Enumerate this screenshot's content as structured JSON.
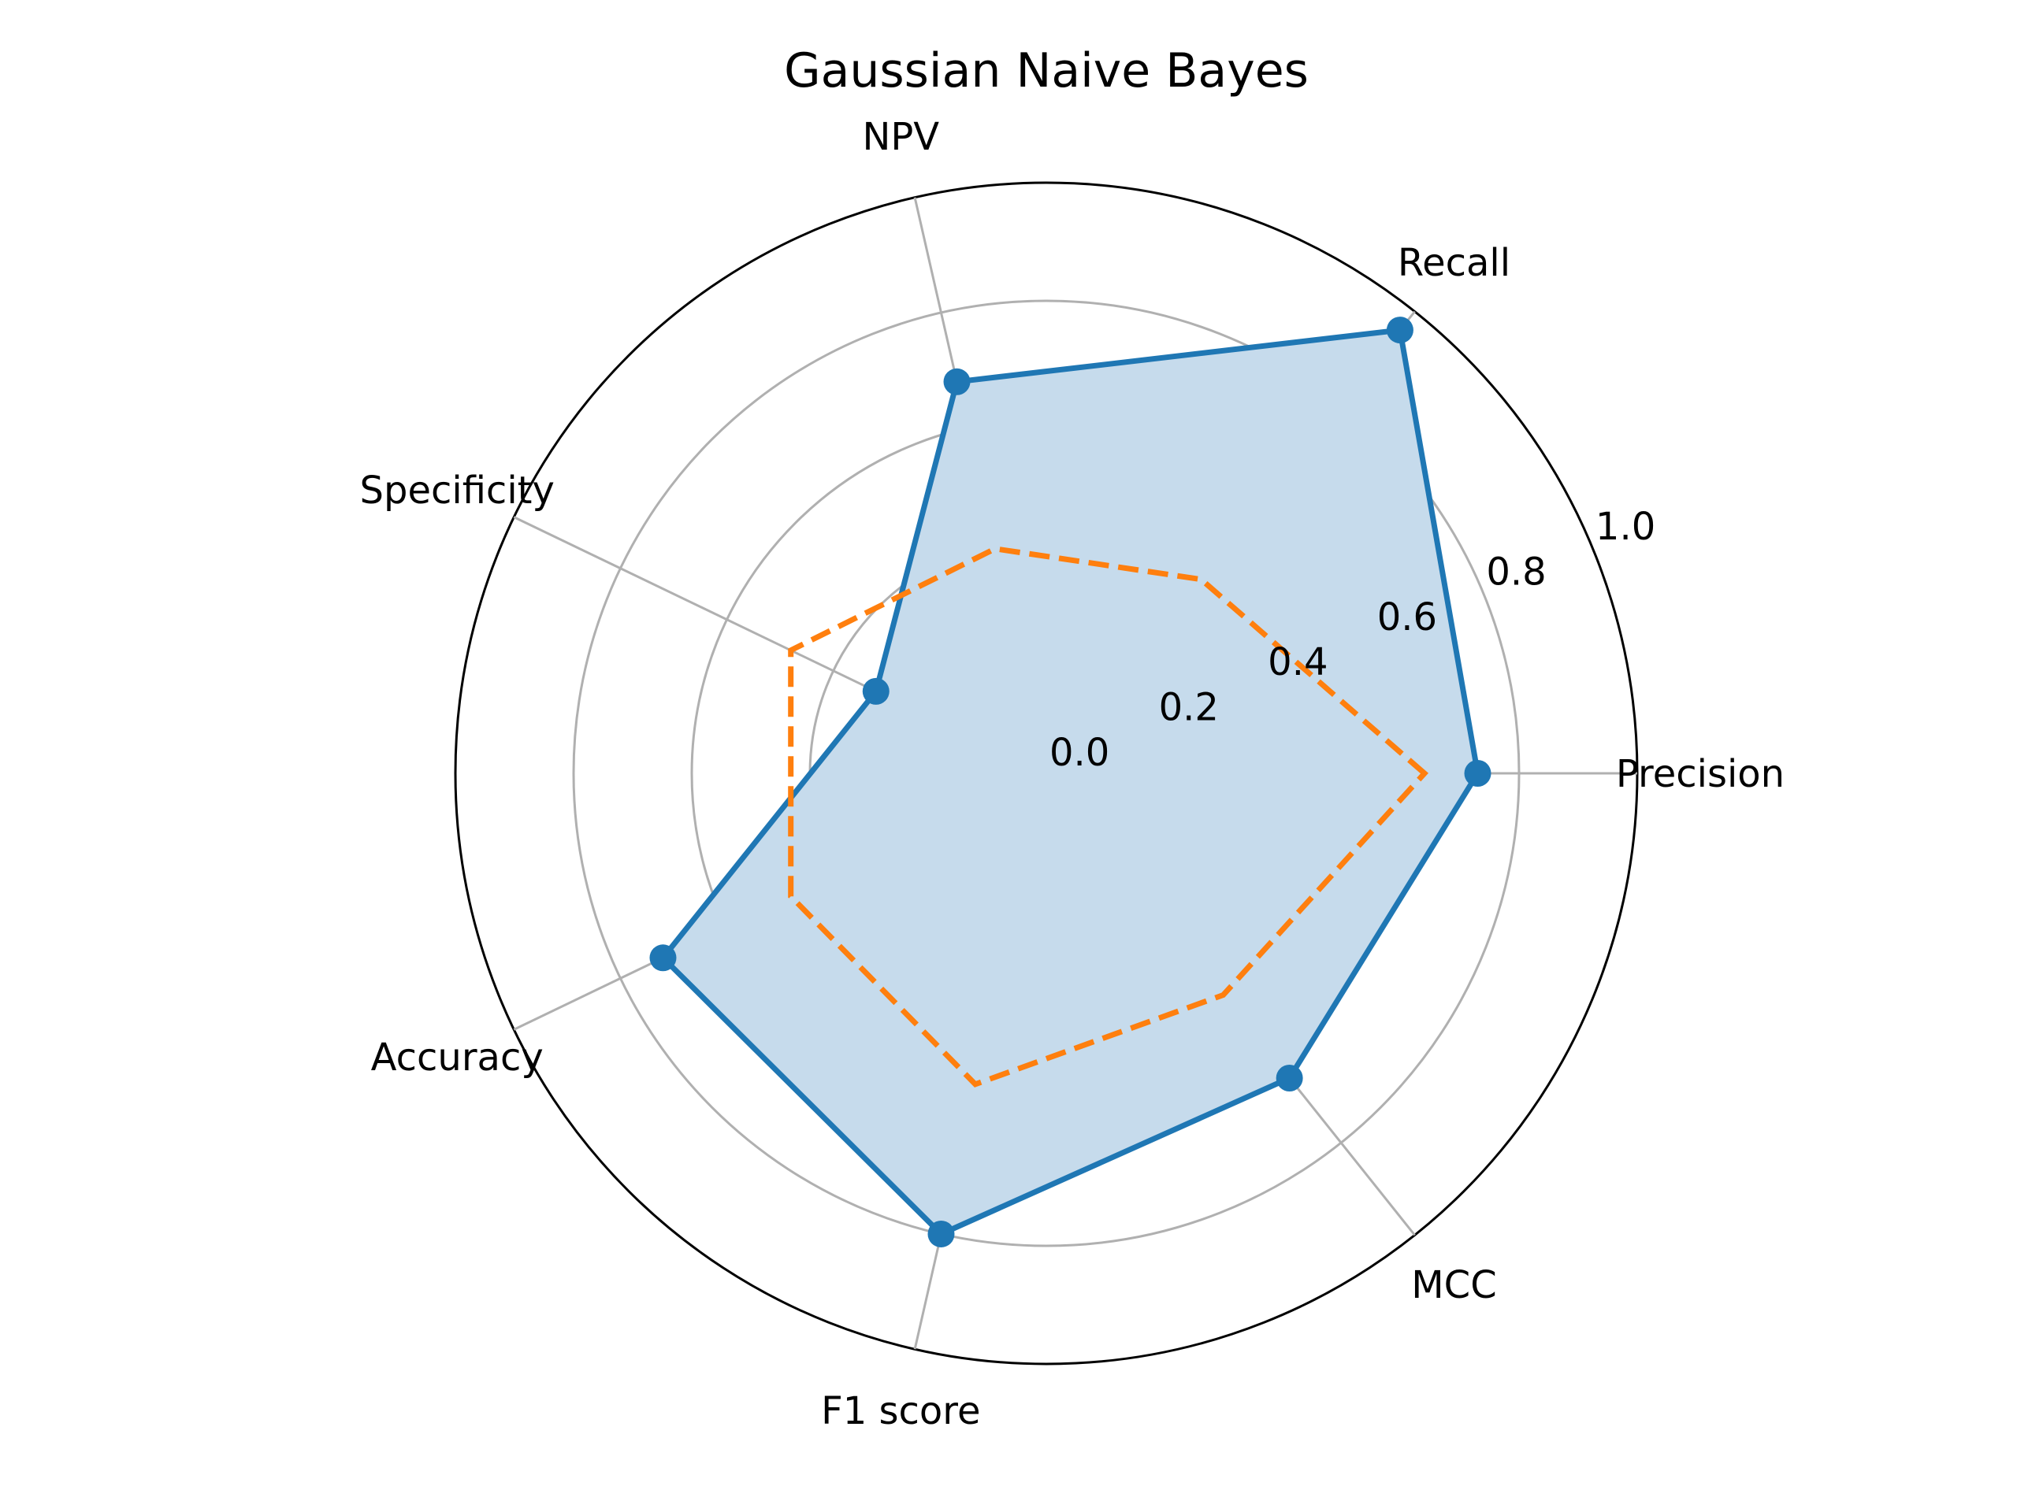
{
  "chart_data": {
    "type": "radar",
    "title": "Gaussian Naive Bayes",
    "categories": [
      "Precision",
      "Recall",
      "NPV",
      "Specificity",
      "Accuracy",
      "F1 score",
      "MCC"
    ],
    "series": [
      {
        "values": [
          0.73,
          0.96,
          0.68,
          0.32,
          0.72,
          0.8,
          0.66
        ],
        "color": "#1f77b4",
        "style": "solid",
        "marker": "circle",
        "fill": "#c6dbec"
      },
      {
        "values": [
          0.64,
          0.42,
          0.39,
          0.48,
          0.48,
          0.54,
          0.48
        ],
        "color": "#ff7f0e",
        "style": "dashed",
        "marker": "none"
      }
    ],
    "r_ticks": [
      "0.0",
      "0.2",
      "0.4",
      "0.6",
      "0.8",
      "1.0"
    ],
    "r_tick_values": [
      0.0,
      0.2,
      0.4,
      0.6,
      0.8,
      1.0
    ],
    "rlim": [
      0,
      1.0
    ],
    "grid": true,
    "colors": {
      "grid": "#b0b0b0",
      "outer": "#000000"
    }
  }
}
